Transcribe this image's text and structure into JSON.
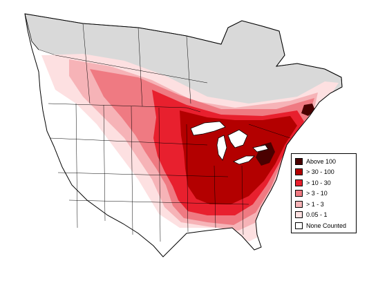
{
  "legend": {
    "items": [
      {
        "label": "Above 100",
        "color": "#4a0000"
      },
      {
        "label": "> 30 - 100",
        "color": "#b30000"
      },
      {
        "label": "> 10 - 30",
        "color": "#e8202e"
      },
      {
        "label": "> 3 - 10",
        "color": "#ef7a82"
      },
      {
        "label": "> 1 - 3",
        "color": "#f6b3b7"
      },
      {
        "label": " 0.05 - 1",
        "color": "#fde0e1"
      },
      {
        "label": "None Counted",
        "color": "#ffffff"
      }
    ]
  },
  "map_colors": {
    "no_data_region": "#d9d9d9",
    "boundaries": "#000000",
    "background": "#ffffff"
  }
}
